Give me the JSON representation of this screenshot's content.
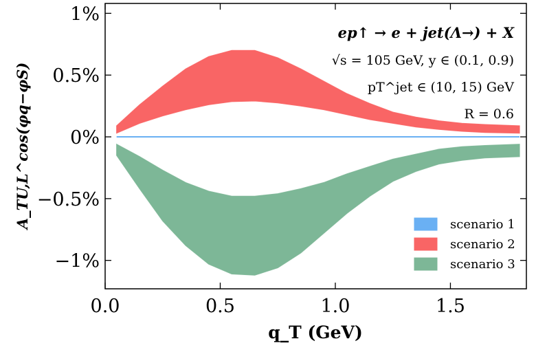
{
  "chart_data": {
    "type": "area",
    "xlabel": "q_T (GeV)",
    "ylabel": "A_TU,L^cos(φq−φS)",
    "xlim": [
      0,
      1.83
    ],
    "ylim": [
      -1.23,
      1.08
    ],
    "x_ticks": [
      {
        "value": 0.0,
        "label": "0.0"
      },
      {
        "value": 0.5,
        "label": "0.5"
      },
      {
        "value": 1.0,
        "label": "1.0"
      },
      {
        "value": 1.5,
        "label": "1.5"
      }
    ],
    "y_ticks": [
      {
        "value": 1.0,
        "label": "1%"
      },
      {
        "value": 0.5,
        "label": "0.5%"
      },
      {
        "value": 0.0,
        "label": "0%"
      },
      {
        "value": -0.5,
        "label": "−0.5%"
      },
      {
        "value": -1.0,
        "label": "−1%"
      }
    ],
    "annotations": [
      "ep↑ → e + jet(Λ→) + X",
      "√s = 105 GeV,  y ∈ (0.1, 0.9)",
      "pT^jet ∈ (10, 15) GeV",
      "R = 0.6"
    ],
    "legend_position": "bottom-right",
    "series": [
      {
        "name": "scenario 1",
        "color": "#6ab0f3",
        "x": [
          0.05,
          1.8
        ],
        "lower": [
          0.0,
          0.0
        ],
        "upper": [
          0.0,
          0.0
        ]
      },
      {
        "name": "scenario 2",
        "color": "#f96565",
        "x": [
          0.05,
          0.15,
          0.25,
          0.35,
          0.45,
          0.55,
          0.65,
          0.75,
          0.85,
          0.95,
          1.05,
          1.15,
          1.25,
          1.35,
          1.45,
          1.55,
          1.65,
          1.8
        ],
        "lower": [
          0.03,
          0.11,
          0.17,
          0.22,
          0.26,
          0.285,
          0.29,
          0.275,
          0.25,
          0.22,
          0.18,
          0.14,
          0.11,
          0.08,
          0.06,
          0.045,
          0.035,
          0.03
        ],
        "upper": [
          0.09,
          0.26,
          0.41,
          0.55,
          0.65,
          0.7,
          0.7,
          0.64,
          0.55,
          0.45,
          0.35,
          0.27,
          0.2,
          0.16,
          0.13,
          0.11,
          0.1,
          0.09
        ]
      },
      {
        "name": "scenario 3",
        "color": "#7db797",
        "x": [
          0.05,
          0.15,
          0.25,
          0.35,
          0.45,
          0.55,
          0.65,
          0.75,
          0.85,
          0.95,
          1.05,
          1.15,
          1.25,
          1.35,
          1.45,
          1.55,
          1.65,
          1.8
        ],
        "lower": [
          -0.15,
          -0.42,
          -0.68,
          -0.88,
          -1.03,
          -1.11,
          -1.12,
          -1.06,
          -0.94,
          -0.78,
          -0.62,
          -0.48,
          -0.36,
          -0.28,
          -0.22,
          -0.19,
          -0.17,
          -0.16
        ],
        "upper": [
          -0.06,
          -0.16,
          -0.27,
          -0.37,
          -0.44,
          -0.48,
          -0.48,
          -0.46,
          -0.42,
          -0.37,
          -0.3,
          -0.24,
          -0.18,
          -0.14,
          -0.1,
          -0.08,
          -0.07,
          -0.06
        ]
      }
    ]
  }
}
